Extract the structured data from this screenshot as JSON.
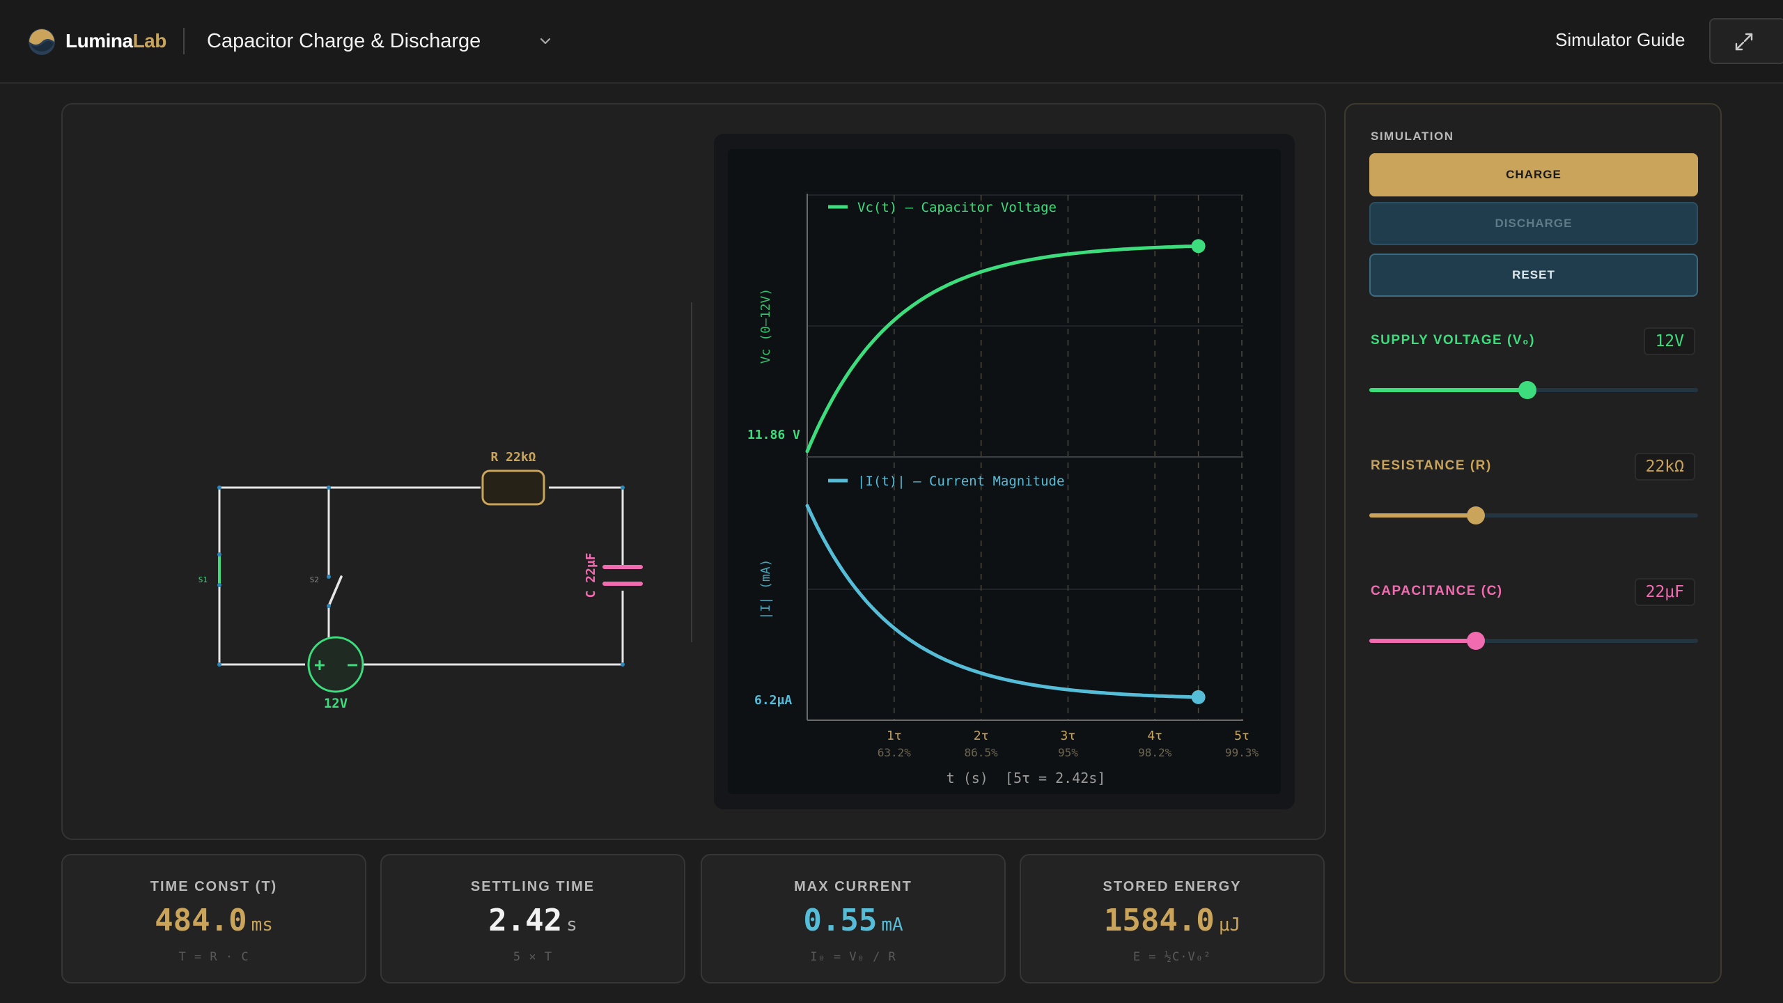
{
  "header": {
    "brand_part1": "Lumina",
    "brand_part2": "Lab",
    "title": "Capacitor Charge & Discharge",
    "guide_label": "Simulator Guide"
  },
  "circuit": {
    "resistor_label": "R 22kΩ",
    "capacitor_label": "C 22μF",
    "source_label": "12V",
    "switch1_label": "S1",
    "switch2_label": "S2",
    "plus": "+",
    "minus": "−"
  },
  "graph": {
    "voltage_legend": "Vc(t) — Capacitor Voltage",
    "current_legend": "|I(t)| — Current Magnitude",
    "voltage_ylabel": "Vc (0–12V)",
    "current_ylabel": "|I| (mA)",
    "voltage_readout": "11.86 V",
    "current_readout": "6.2μA",
    "xlabel": "t (s)  [5τ = 2.42s]",
    "ticks": [
      {
        "tau": "1τ",
        "pct": "63.2%"
      },
      {
        "tau": "2τ",
        "pct": "86.5%"
      },
      {
        "tau": "3τ",
        "pct": "95%"
      },
      {
        "tau": "4τ",
        "pct": "98.2%"
      },
      {
        "tau": "5τ",
        "pct": "99.3%"
      }
    ],
    "progress_tau": 4.5,
    "colors": {
      "voltage": "#3ddc7d",
      "current": "#56bdd8",
      "tick": "#c9a45a"
    }
  },
  "stats": [
    {
      "label": "TIME CONST (T)",
      "value": "484.0",
      "unit": "ms",
      "formula": "T = R · C",
      "color": "#c9a45a"
    },
    {
      "label": "SETTLING TIME",
      "value": "2.42",
      "unit": "s",
      "formula": "5 × T",
      "color": "#f2f2f2"
    },
    {
      "label": "MAX CURRENT",
      "value": "0.55",
      "unit": "mA",
      "formula": "I₀ = V₀ / R",
      "color": "#56bdd8"
    },
    {
      "label": "STORED ENERGY",
      "value": "1584.0",
      "unit": "μJ",
      "formula": "E = ½C·V₀²",
      "color": "#c9a45a"
    }
  ],
  "controls": {
    "section_label": "SIMULATION",
    "charge_label": "CHARGE",
    "discharge_label": "DISCHARGE",
    "reset_label": "RESET",
    "params": [
      {
        "label": "SUPPLY VOLTAGE (V₀)",
        "value": "12V",
        "fraction": 0.48,
        "color": "#3ddc7d"
      },
      {
        "label": "RESISTANCE (R)",
        "value": "22kΩ",
        "fraction": 0.325,
        "color": "#c9a45a"
      },
      {
        "label": "CAPACITANCE (C)",
        "value": "22μF",
        "fraction": 0.325,
        "color": "#f06bb0"
      }
    ]
  }
}
